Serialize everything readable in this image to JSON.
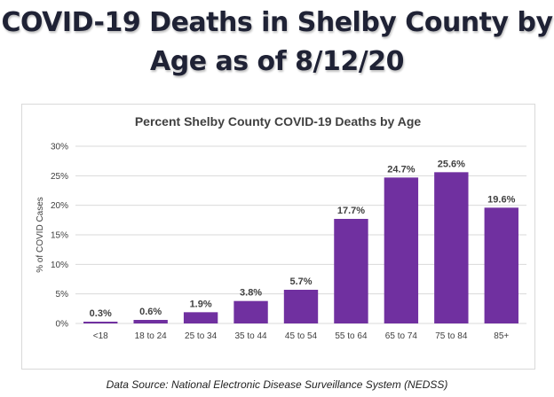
{
  "slide": {
    "title_line1": "COVID-19 Deaths in Shelby County by",
    "title_line2": "Age as of 8/12/20",
    "footer": "Data Source: National Electronic Disease Surveillance System (NEDSS)"
  },
  "colors": {
    "bar": "#7030a0",
    "grid": "#d9d9d9",
    "axis_text": "#404040",
    "title_text": "#404040"
  },
  "chart_data": {
    "type": "bar",
    "title": "Percent Shelby County COVID-19 Deaths by Age",
    "xlabel": "",
    "ylabel": "% of COVID Cases",
    "categories": [
      "<18",
      "18 to 24",
      "25 to 34",
      "35 to 44",
      "45 to 54",
      "55 to 64",
      "65 to 74",
      "75 to 84",
      "85+"
    ],
    "values": [
      0.3,
      0.6,
      1.9,
      3.8,
      5.7,
      17.7,
      24.7,
      25.6,
      19.6
    ],
    "data_labels": [
      "0.3%",
      "0.6%",
      "1.9%",
      "3.8%",
      "5.7%",
      "17.7%",
      "24.7%",
      "25.6%",
      "19.6%"
    ],
    "yticks": [
      0,
      5,
      10,
      15,
      20,
      25,
      30
    ],
    "ytick_labels": [
      "0%",
      "5%",
      "10%",
      "15%",
      "20%",
      "25%",
      "30%"
    ],
    "ylim": [
      0,
      30
    ],
    "grid": true,
    "legend": "none"
  }
}
